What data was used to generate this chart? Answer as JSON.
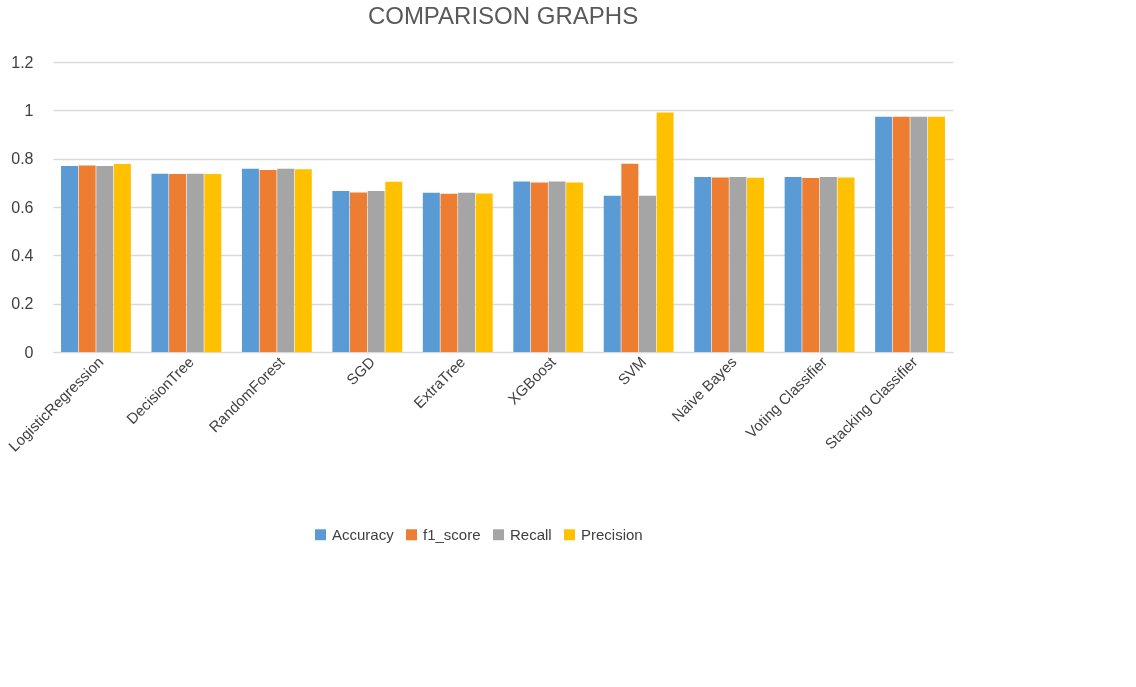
{
  "chart_data": {
    "type": "bar",
    "title": "COMPARISON GRAPHS",
    "categories": [
      "LogisticRegression",
      "DecisionTree",
      "RandomForest",
      "SGD",
      "ExtraTree",
      "XGBoost",
      "SVM",
      "Naive Bayes",
      "Voting Classifier",
      "Stacking Classifier"
    ],
    "series": [
      {
        "name": "Accuracy",
        "color": "#5b9bd5",
        "values": [
          0.77,
          0.738,
          0.758,
          0.666,
          0.659,
          0.706,
          0.647,
          0.724,
          0.724,
          0.973
        ]
      },
      {
        "name": "f1_score",
        "color": "#ed7d31",
        "values": [
          0.772,
          0.737,
          0.753,
          0.66,
          0.655,
          0.701,
          0.779,
          0.722,
          0.72,
          0.973
        ]
      },
      {
        "name": "Recall",
        "color": "#a5a5a5",
        "values": [
          0.77,
          0.738,
          0.758,
          0.666,
          0.659,
          0.706,
          0.647,
          0.724,
          0.724,
          0.973
        ]
      },
      {
        "name": "Precision",
        "color": "#ffc000",
        "values": [
          0.778,
          0.737,
          0.756,
          0.705,
          0.656,
          0.701,
          0.991,
          0.721,
          0.722,
          0.973
        ]
      }
    ],
    "ylim": [
      0,
      1.2
    ],
    "yticks": [
      0,
      0.2,
      0.4,
      0.6,
      0.8,
      1,
      1.2
    ],
    "grid": "y",
    "legend": "bottom"
  }
}
